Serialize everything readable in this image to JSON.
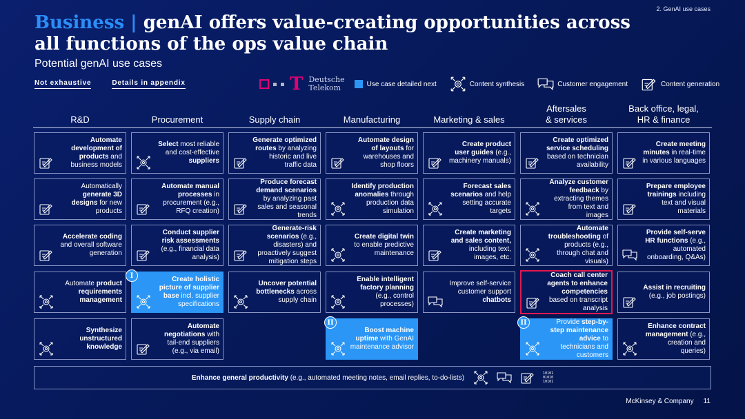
{
  "section_tag": "2. GenAI use cases",
  "title": {
    "accent": "Business |",
    "main": "genAI offers value-creating opportunities across all functions of the ops value chain"
  },
  "subtitle": "Potential genAI use cases",
  "flags": [
    "Not exhaustive",
    "Details in appendix"
  ],
  "legend": {
    "logo_line1": "Deutsche",
    "logo_line2": "Telekom",
    "detailed_next": "Use case detailed next",
    "synthesis": "Content synthesis",
    "engagement": "Customer engagement",
    "generation": "Content generation"
  },
  "columns": [
    "R&D",
    "Procurement",
    "Supply chain",
    "Manufacturing",
    "Marketing & sales",
    "Aftersales\n& services",
    "Back office, legal,\nHR & finance"
  ],
  "colors": {
    "accent": "#2b8ef8",
    "highlight": "#2b96f5",
    "telekom": "#e20074",
    "red_frame": "#e2174f",
    "background": "#06195a"
  },
  "cards": {
    "r1c1": {
      "pre": "",
      "bold": "Automate development of products",
      "post": " and business models"
    },
    "r1c2": {
      "pre": "",
      "bold": "Select",
      "post": " most reliable and cost-effective ",
      "bold2": "suppliers"
    },
    "r1c3": {
      "pre": "",
      "bold": "Generate optimized routes",
      "post": " by analyzing historic and live traffic data"
    },
    "r1c4": {
      "pre": "",
      "bold": "Automate design of layouts",
      "post": " for warehouses and shop floors"
    },
    "r1c5": {
      "pre": "",
      "bold": "Create product user guides",
      "post": " (e.g., machinery manuals)"
    },
    "r1c6": {
      "pre": "",
      "bold": "Create optimized service scheduling",
      "post": " based on technician availability"
    },
    "r1c7": {
      "pre": "",
      "bold": "Create meeting minutes",
      "post": " in real-time in various languages"
    },
    "r2c1": {
      "pre": "Automatically ",
      "bold": "generate 3D designs",
      "post": " for new products"
    },
    "r2c2": {
      "pre": "",
      "bold": "Automate manual processes",
      "post": " in procurement (e.g., RFQ creation)"
    },
    "r2c3": {
      "pre": "",
      "bold": "Produce forecast demand scenarios",
      "post": " by analyzing past sales and seasonal trends"
    },
    "r2c4": {
      "pre": "",
      "bold": "Identify production anomalies",
      "post": " through production data simulation"
    },
    "r2c5": {
      "pre": "",
      "bold": "Forecast sales scenarios",
      "post": " and help setting accurate targets"
    },
    "r2c6": {
      "pre": "",
      "bold": "Analyze customer feedback",
      "post": " by extracting themes from text and images"
    },
    "r2c7": {
      "pre": "",
      "bold": "Prepare employee trainings",
      "post": " including text and visual materials"
    },
    "r3c1": {
      "pre": "",
      "bold": "Accelerate coding",
      "post": " and overall software generation"
    },
    "r3c2": {
      "pre": "",
      "bold": "Conduct supplier risk assessments",
      "post": " (e.g., financial data analysis)"
    },
    "r3c3": {
      "pre": "",
      "bold": "Generate-risk scenarios",
      "post": " (e.g., disasters) and proactively suggest mitigation steps"
    },
    "r3c4": {
      "pre": "",
      "bold": "Create digital twin",
      "post": " to enable predictive maintenance"
    },
    "r3c5": {
      "pre": "",
      "bold": "Create marketing and sales content,",
      "post": " including text, images, etc."
    },
    "r3c6": {
      "pre": "",
      "bold": "Automate troubleshooting",
      "post": " of products (e.g., through chat and visuals)"
    },
    "r3c7": {
      "pre": "",
      "bold": "Provide self-serve HR functions",
      "post": " (e.g., automated onboarding, Q&As)"
    },
    "r4c1": {
      "pre": "Automate ",
      "bold": "product requirements management",
      "post": ""
    },
    "r4c2": {
      "pre": "",
      "bold": "Create holistic picture of supplier base",
      "post": " incl. supplier specifications"
    },
    "r4c3": {
      "pre": "",
      "bold": "Uncover potential bottlenecks",
      "post": " across supply chain"
    },
    "r4c4": {
      "pre": "",
      "bold": "Enable intelligent factory planning",
      "post": " (e.g., control processes)"
    },
    "r4c5": {
      "pre": "Improve self-service customer support ",
      "bold": "chatbots",
      "post": ""
    },
    "r4c6": {
      "pre": "",
      "bold": "Coach call center agents to enhance competencies",
      "post": " based on transcript analysis"
    },
    "r4c7": {
      "pre": "",
      "bold": "Assist in recruiting",
      "post": " (e.g., job postings)"
    },
    "r5c1": {
      "pre": "",
      "bold": "Synthesize unstructured knowledge",
      "post": ""
    },
    "r5c2": {
      "pre": "",
      "bold": "Automate negotiations",
      "post": " with tail-end suppliers (e.g., via email)"
    },
    "r5c4": {
      "pre": "",
      "bold": "Boost machine uptime",
      "post": " with GenAI maintenance advisor"
    },
    "r5c6": {
      "pre": "Provide ",
      "bold": "step-by-step maintenance advice",
      "post": " to technicians and customers"
    },
    "r5c7": {
      "pre": "",
      "bold": "Enhance contract management",
      "post": " (e.g., creation and queries)"
    }
  },
  "badges": {
    "b1": "I",
    "b2": "II",
    "b3": "II"
  },
  "bottom_bar": {
    "bold": "Enhance general productivity",
    "rest": " (e.g., automated meeting notes, email replies, to-do-lists)",
    "binary": [
      "10101",
      "01010",
      "10101"
    ]
  },
  "footer": {
    "company": "McKinsey & Company",
    "page": "11"
  }
}
